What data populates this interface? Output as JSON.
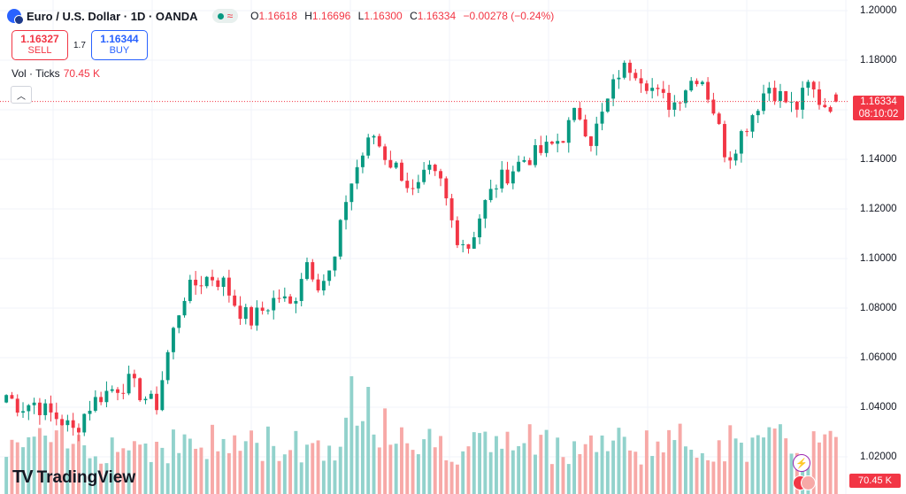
{
  "header": {
    "symbol": "Euro / U.S. Dollar · 1D · OANDA",
    "status_icon": "wave-icon",
    "ohlc": {
      "o_label": "O",
      "o": "1.16618",
      "h_label": "H",
      "h": "1.16696",
      "l_label": "L",
      "l": "1.16300",
      "c_label": "C",
      "c": "1.16334",
      "change": "−0.00278 (−0.24%)"
    }
  },
  "trade": {
    "sell_price": "1.16327",
    "sell_label": "SELL",
    "spread": "1.7",
    "buy_price": "1.16344",
    "buy_label": "BUY"
  },
  "volume": {
    "label": "Vol · Ticks",
    "value": "70.45 K"
  },
  "price_axis": [
    "1.20000",
    "1.18000",
    "1.16000",
    "1.14000",
    "1.12000",
    "1.10000",
    "1.08000",
    "1.06000",
    "1.04000",
    "1.02000"
  ],
  "current_price": {
    "price": "1.16334",
    "countdown": "08:10:02"
  },
  "volume_tag": "70.45 K",
  "logo": "TradingView",
  "colors": {
    "up": "#089981",
    "down": "#f23645",
    "up_vol": "#92d2cc",
    "down_vol": "#f7a9a7"
  },
  "chart_data": {
    "type": "candlestick",
    "title": "Euro / U.S. Dollar · 1D · OANDA",
    "ylim": [
      1.0,
      1.2
    ],
    "y_ticks": [
      1.02,
      1.04,
      1.06,
      1.08,
      1.1,
      1.12,
      1.14,
      1.16,
      1.18,
      1.2
    ],
    "current": 1.16334,
    "anchors_close": [
      1.045,
      1.04,
      1.042,
      1.038,
      1.035,
      1.03,
      1.04,
      1.045,
      1.048,
      1.05,
      1.045,
      1.04,
      1.065,
      1.085,
      1.09,
      1.093,
      1.09,
      1.08,
      1.075,
      1.08,
      1.085,
      1.08,
      1.1,
      1.09,
      1.095,
      1.125,
      1.14,
      1.15,
      1.14,
      1.135,
      1.125,
      1.135,
      1.13,
      1.11,
      1.105,
      1.12,
      1.13,
      1.135,
      1.14,
      1.142,
      1.145,
      1.15,
      1.16,
      1.148,
      1.16,
      1.175,
      1.178,
      1.172,
      1.165,
      1.162,
      1.17,
      1.175,
      1.16,
      1.14,
      1.15,
      1.16,
      1.17,
      1.165,
      1.16,
      1.17,
      1.162,
      1.163
    ],
    "last_bar": {
      "open": 1.16618,
      "high": 1.16696,
      "low": 1.163,
      "close": 1.16334,
      "volume": "70.45 K"
    }
  }
}
